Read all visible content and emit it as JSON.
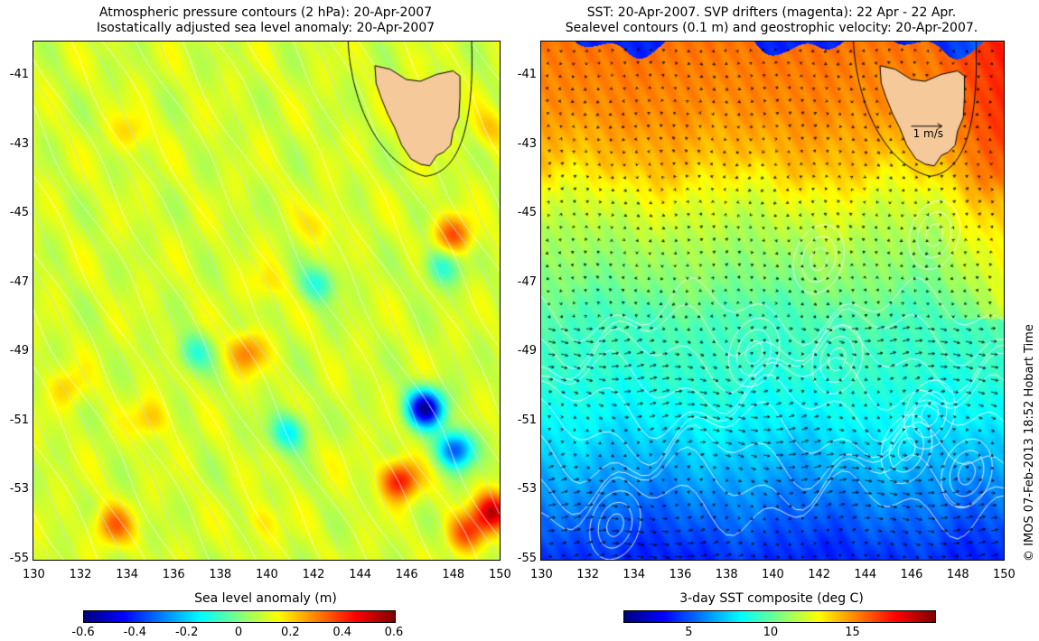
{
  "left_panel": {
    "title_line1": "Atmospheric pressure contours (2 hPa): 20-Apr-2007",
    "title_line2": "Isostatically adjusted sea level anomaly: 20-Apr-2007",
    "colorbar": {
      "label": "Sea level anomaly (m)",
      "min": -0.6,
      "max": 0.6,
      "ticks": [
        "-0.6",
        "-0.4",
        "-0.2",
        "0",
        "0.2",
        "0.4",
        "0.6"
      ],
      "tick_values": [
        -0.6,
        -0.4,
        -0.2,
        0,
        0.2,
        0.4,
        0.6
      ],
      "colormap": "jet"
    },
    "anomaly_features": [
      {
        "lon": 146.8,
        "lat": -50.6,
        "value": -0.55
      },
      {
        "lon": 148.1,
        "lat": -51.8,
        "value": -0.35
      },
      {
        "lon": 145.7,
        "lat": -52.7,
        "value": 0.45
      },
      {
        "lon": 149.7,
        "lat": -53.6,
        "value": 0.5
      },
      {
        "lon": 148.6,
        "lat": -54.2,
        "value": 0.35
      },
      {
        "lon": 148.0,
        "lat": -45.6,
        "value": 0.35
      },
      {
        "lon": 133.4,
        "lat": -54.0,
        "value": 0.32
      },
      {
        "lon": 139.1,
        "lat": -49.0,
        "value": 0.3
      },
      {
        "lon": 135.0,
        "lat": -50.9,
        "value": 0.22
      },
      {
        "lon": 131.5,
        "lat": -50.0,
        "value": 0.2
      },
      {
        "lon": 134.2,
        "lat": -42.6,
        "value": 0.2
      },
      {
        "lon": 142.3,
        "lat": -45.3,
        "value": 0.18
      },
      {
        "lon": 140.0,
        "lat": -47.0,
        "value": 0.18
      },
      {
        "lon": 149.6,
        "lat": -42.5,
        "value": 0.2
      },
      {
        "lon": 139.8,
        "lat": -53.9,
        "value": 0.18
      },
      {
        "lon": 140.9,
        "lat": -51.3,
        "value": -0.15
      },
      {
        "lon": 142.2,
        "lat": -47.0,
        "value": -0.1
      },
      {
        "lon": 147.5,
        "lat": -46.5,
        "value": -0.1
      },
      {
        "lon": 136.9,
        "lat": -49.0,
        "value": -0.08
      },
      {
        "lon": 143.0,
        "lat": -52.0,
        "value": 0.12
      }
    ]
  },
  "right_panel": {
    "title_line1": "SST: 20-Apr-2007. SVP drifters (magenta): 22 Apr - 22 Apr.",
    "title_line2": "Sealevel contours (0.1 m) and geostrophic velocity: 20-Apr-2007.",
    "scale_arrow_label": "1 m/s",
    "colorbar": {
      "label": "3-day SST composite (deg C)",
      "min": 1,
      "max": 20,
      "ticks": [
        "5",
        "10",
        "15"
      ],
      "tick_values": [
        5,
        10,
        15
      ],
      "colormap": "jet"
    },
    "sst_bands": [
      {
        "lat": -40,
        "value": 15.5
      },
      {
        "lat": -42,
        "value": 15
      },
      {
        "lat": -43.5,
        "value": 14
      },
      {
        "lat": -44.5,
        "value": 12.5
      },
      {
        "lat": -45.5,
        "value": 11.5
      },
      {
        "lat": -47,
        "value": 10.5
      },
      {
        "lat": -48,
        "value": 9.5
      },
      {
        "lat": -49.5,
        "value": 9
      },
      {
        "lat": -51,
        "value": 8
      },
      {
        "lat": -52.5,
        "value": 6.5
      },
      {
        "lat": -54,
        "value": 5
      },
      {
        "lat": -55,
        "value": 4
      }
    ],
    "eddies": [
      {
        "lon": 147.0,
        "lat": -45.6
      },
      {
        "lon": 146.8,
        "lat": -50.8
      },
      {
        "lon": 142.8,
        "lat": -49.2
      },
      {
        "lon": 148.4,
        "lat": -52.5
      },
      {
        "lon": 133.2,
        "lat": -54.0
      },
      {
        "lon": 139.2,
        "lat": -49.0
      },
      {
        "lon": 142.0,
        "lat": -46.3
      },
      {
        "lon": 145.8,
        "lat": -51.8
      }
    ]
  },
  "axes": {
    "lon_min": 130,
    "lon_max": 150,
    "lat_min": -55,
    "lat_max": -40,
    "x_ticks": [
      "130",
      "132",
      "134",
      "136",
      "138",
      "140",
      "142",
      "144",
      "146",
      "148",
      "150"
    ],
    "x_values": [
      130,
      132,
      134,
      136,
      138,
      140,
      142,
      144,
      146,
      148,
      150
    ],
    "y_ticks": [
      "-41",
      "-43",
      "-45",
      "-47",
      "-49",
      "-51",
      "-53",
      "-55"
    ],
    "y_values": [
      -41,
      -43,
      -45,
      -47,
      -49,
      -51,
      -53,
      -55
    ]
  },
  "land": {
    "name_hidden": true,
    "tasmania_outline": [
      [
        144.65,
        -40.7
      ],
      [
        145.3,
        -40.8
      ],
      [
        146.0,
        -41.1
      ],
      [
        146.6,
        -41.15
      ],
      [
        147.3,
        -40.95
      ],
      [
        148.0,
        -40.85
      ],
      [
        148.3,
        -41.0
      ],
      [
        148.3,
        -41.6
      ],
      [
        148.25,
        -42.2
      ],
      [
        148.0,
        -42.6
      ],
      [
        147.9,
        -43.0
      ],
      [
        147.6,
        -43.2
      ],
      [
        147.3,
        -43.3
      ],
      [
        147.0,
        -43.6
      ],
      [
        146.6,
        -43.55
      ],
      [
        146.2,
        -43.4
      ],
      [
        145.8,
        -43.0
      ],
      [
        145.5,
        -42.5
      ],
      [
        145.2,
        -42.1
      ],
      [
        144.9,
        -41.6
      ],
      [
        144.7,
        -41.2
      ]
    ],
    "colors": {
      "land": "#f5c99a"
    }
  },
  "credit": "© IMOS 07-Feb-2013 18:52 Hobart Time"
}
